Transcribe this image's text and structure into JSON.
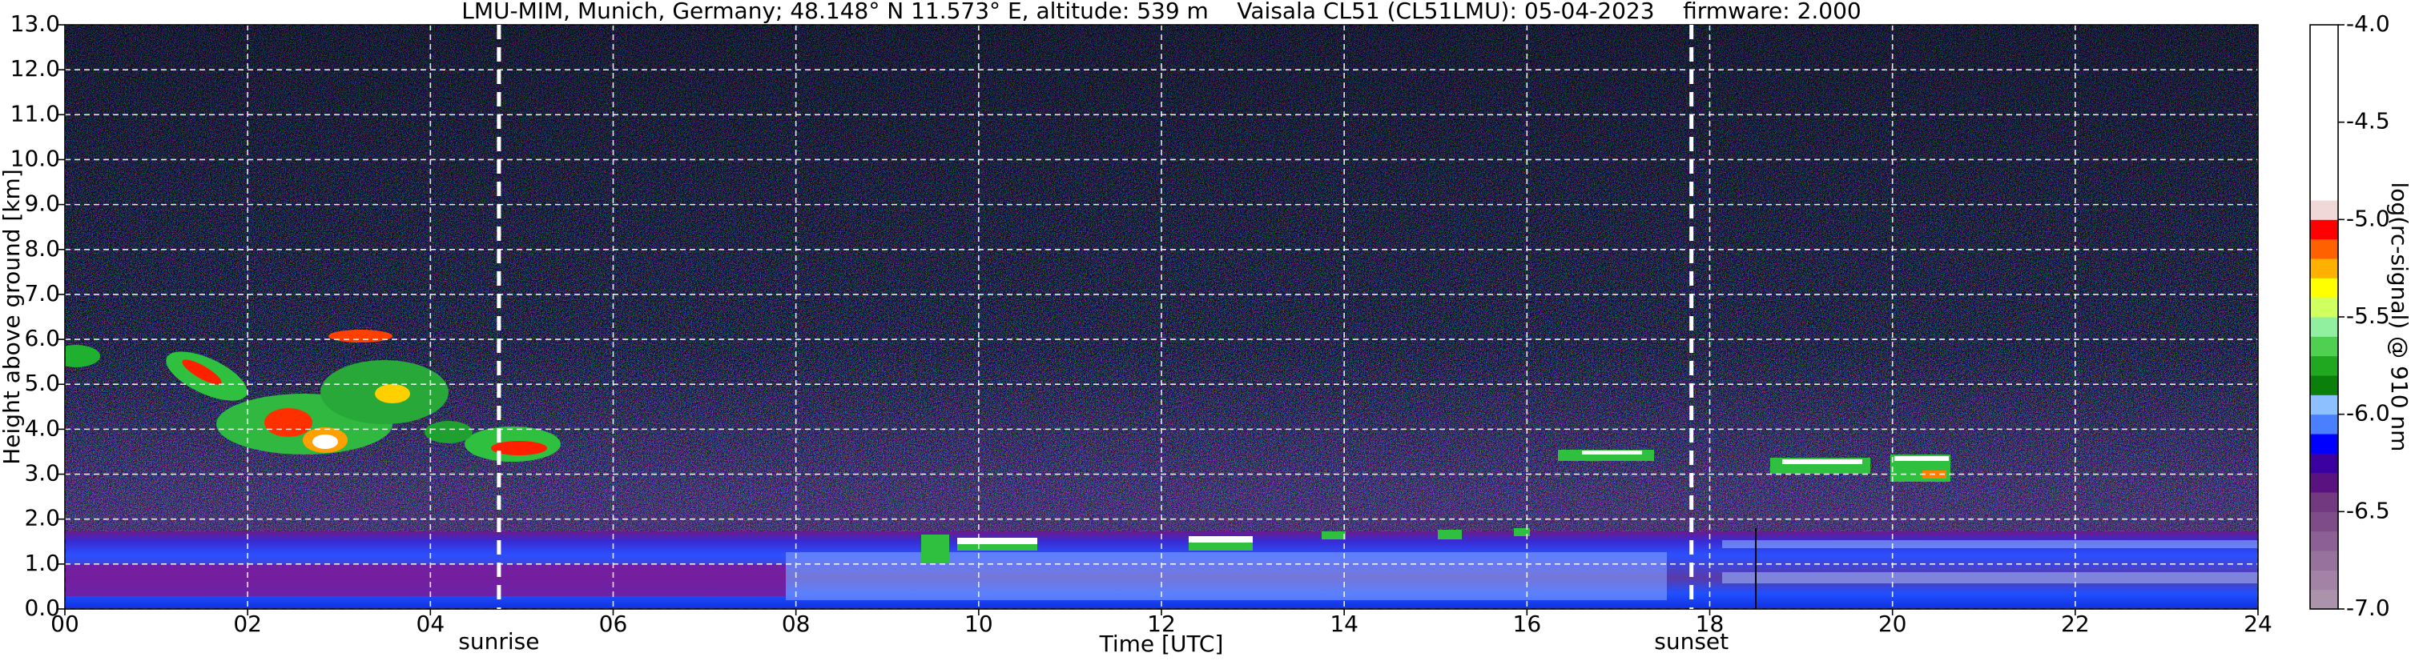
{
  "chart_data": {
    "type": "heatmap",
    "title": "LMU-MIM, Munich, Germany; 48.148° N 11.573° E, altitude: 539 m    Vaisala CL51 (CL51LMU): 05-04-2023    firmware: 2.000",
    "x_label": "Time [UTC]",
    "y_label": "Height above ground [km]",
    "xlim": [
      0,
      24
    ],
    "xticks": [
      {
        "value": 0,
        "label": "00"
      },
      {
        "value": 2,
        "label": "02"
      },
      {
        "value": 4,
        "label": "04"
      },
      {
        "value": 6,
        "label": "06"
      },
      {
        "value": 8,
        "label": "08"
      },
      {
        "value": 10,
        "label": "10"
      },
      {
        "value": 12,
        "label": "12"
      },
      {
        "value": 14,
        "label": "14"
      },
      {
        "value": 16,
        "label": "16"
      },
      {
        "value": 18,
        "label": "18"
      },
      {
        "value": 20,
        "label": "20"
      },
      {
        "value": 22,
        "label": "22"
      },
      {
        "value": 24,
        "label": "24"
      }
    ],
    "ylim": [
      0,
      13
    ],
    "yticks": [
      {
        "value": 0,
        "label": "0.0"
      },
      {
        "value": 1,
        "label": "1.0"
      },
      {
        "value": 2,
        "label": "2.0"
      },
      {
        "value": 3,
        "label": "3.0"
      },
      {
        "value": 4,
        "label": "4.0"
      },
      {
        "value": 5,
        "label": "5.0"
      },
      {
        "value": 6,
        "label": "6.0"
      },
      {
        "value": 7,
        "label": "7.0"
      },
      {
        "value": 8,
        "label": "8.0"
      },
      {
        "value": 9,
        "label": "9.0"
      },
      {
        "value": 10,
        "label": "10.0"
      },
      {
        "value": 11,
        "label": "11.0"
      },
      {
        "value": 12,
        "label": "12.0"
      },
      {
        "value": 13,
        "label": "13.0"
      }
    ],
    "grid": true,
    "annotations": [
      {
        "text": "sunrise",
        "x": 4.75
      },
      {
        "text": "sunset",
        "x": 17.8
      }
    ],
    "colorbar": {
      "label": "log(rc-signal) @ 910 nm",
      "lim": [
        -7,
        -4
      ],
      "ticks": [
        {
          "value": -7,
          "label": "-7.0"
        },
        {
          "value": -6.5,
          "label": "-6.5"
        },
        {
          "value": -6,
          "label": "-6.0"
        },
        {
          "value": -5.5,
          "label": "-5.5"
        },
        {
          "value": -5,
          "label": "-5.0"
        },
        {
          "value": -4.5,
          "label": "-4.5"
        },
        {
          "value": -4,
          "label": "-4.0"
        }
      ],
      "colors": [
        "#ab93ab",
        "#a283a5",
        "#97729c",
        "#8c6094",
        "#7f4c8a",
        "#723880",
        "#5a1280",
        "#3a00a0",
        "#0000ff",
        "#4a80ff",
        "#8cc0ff",
        "#0a800a",
        "#20a820",
        "#50d050",
        "#90f0a0",
        "#d0ff60",
        "#ffff00",
        "#ffb000",
        "#ff6000",
        "#ff0000",
        "#f0d8d8",
        "#ffffff",
        "#ffffff",
        "#ffffff",
        "#ffffff",
        "#ffffff",
        "#ffffff",
        "#ffffff",
        "#ffffff",
        "#ffffff"
      ]
    }
  }
}
